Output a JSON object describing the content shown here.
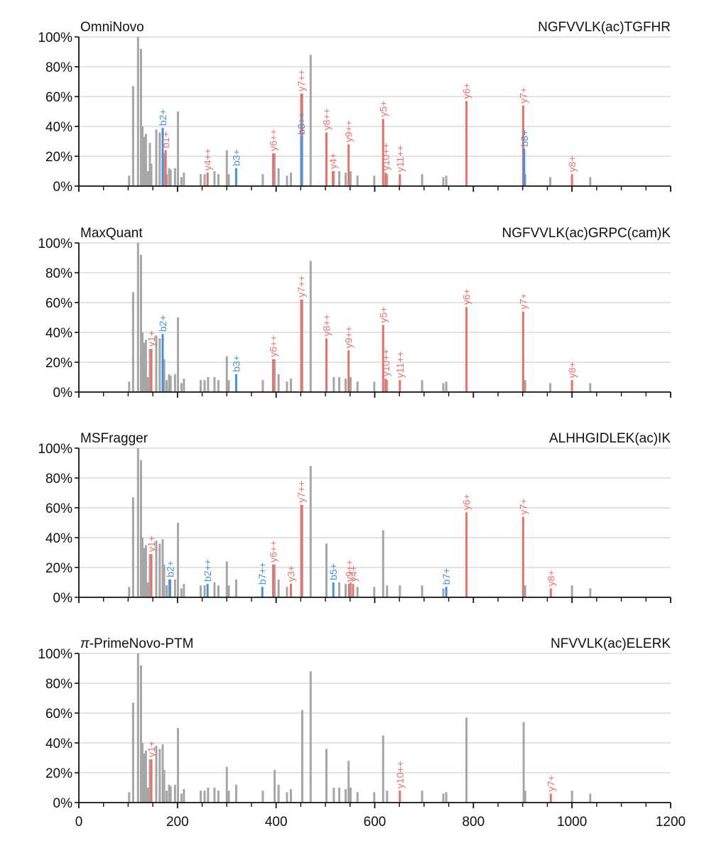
{
  "colors": {
    "unmatched": "#a6a6a6",
    "y_ion": "#e8726b",
    "b_ion": "#4a8fd8",
    "grid": "#d0d0d0",
    "axis": "#111111"
  },
  "chart_data": {
    "type": "bar",
    "x_axis": {
      "range": [
        0,
        1200
      ],
      "major_ticks": [
        0,
        200,
        400,
        600,
        800,
        1000,
        1200
      ],
      "minor_tick_step": 50,
      "tick_labels_shown_on_bottom_panel_only": true
    },
    "y_axis": {
      "range": [
        0,
        100
      ],
      "ticks": [
        0,
        20,
        40,
        60,
        80,
        100
      ],
      "tick_labels": [
        "0%",
        "20%",
        "40%",
        "60%",
        "80%",
        "100%"
      ]
    },
    "grid": "horizontal",
    "background_peaks": [
      [
        102,
        7
      ],
      [
        110,
        67
      ],
      [
        120,
        100
      ],
      [
        126,
        92
      ],
      [
        129,
        40
      ],
      [
        133,
        33
      ],
      [
        136,
        35
      ],
      [
        140,
        10
      ],
      [
        144,
        29
      ],
      [
        147,
        15
      ],
      [
        157,
        38
      ],
      [
        164,
        36
      ],
      [
        170,
        39
      ],
      [
        173,
        22
      ],
      [
        178,
        8
      ],
      [
        183,
        12
      ],
      [
        186,
        11
      ],
      [
        195,
        12
      ],
      [
        201,
        50
      ],
      [
        208,
        6
      ],
      [
        213,
        9
      ],
      [
        247,
        8
      ],
      [
        255,
        8
      ],
      [
        262,
        10
      ],
      [
        275,
        10
      ],
      [
        283,
        8
      ],
      [
        300,
        24
      ],
      [
        304,
        8
      ],
      [
        319,
        12
      ],
      [
        373,
        8
      ],
      [
        397,
        22
      ],
      [
        405,
        12
      ],
      [
        422,
        7
      ],
      [
        430,
        9
      ],
      [
        453,
        62
      ],
      [
        470,
        88
      ],
      [
        502,
        36
      ],
      [
        517,
        10
      ],
      [
        528,
        10
      ],
      [
        541,
        9
      ],
      [
        547,
        28
      ],
      [
        551,
        10
      ],
      [
        565,
        7
      ],
      [
        599,
        7
      ],
      [
        617,
        45
      ],
      [
        625,
        8
      ],
      [
        651,
        8
      ],
      [
        696,
        8
      ],
      [
        739,
        6
      ],
      [
        745,
        7
      ],
      [
        786,
        57
      ],
      [
        902,
        54
      ],
      [
        905,
        8
      ],
      [
        956,
        6
      ],
      [
        1000,
        8
      ],
      [
        1037,
        6
      ]
    ],
    "panels": [
      {
        "method_prefix": "",
        "method": "OmniNovo",
        "peptide": "NGFVVLK(ac)TGFHR",
        "annotated_peaks": [
          {
            "x": 170,
            "y": 39,
            "ion": "b2+",
            "type": "b"
          },
          {
            "x": 176,
            "y": 24,
            "ion": "b1+",
            "type": "y"
          },
          {
            "x": 261,
            "y": 9,
            "ion": "y4++",
            "type": "y"
          },
          {
            "x": 319,
            "y": 12,
            "ion": "b3+",
            "type": "b"
          },
          {
            "x": 394,
            "y": 22,
            "ion": "y6++",
            "type": "y"
          },
          {
            "x": 451,
            "y": 62,
            "ion": "y7++",
            "type": "y"
          },
          {
            "x": 451,
            "y": 33,
            "ion": "b8++",
            "type": "b"
          },
          {
            "x": 502,
            "y": 36,
            "ion": "y8++",
            "type": "y"
          },
          {
            "x": 515,
            "y": 10,
            "ion": "y4+",
            "type": "y"
          },
          {
            "x": 547,
            "y": 28,
            "ion": "y9++",
            "type": "y"
          },
          {
            "x": 617,
            "y": 45,
            "ion": "y5+",
            "type": "y"
          },
          {
            "x": 622,
            "y": 9,
            "ion": "y10++",
            "type": "y"
          },
          {
            "x": 651,
            "y": 8,
            "ion": "y11++",
            "type": "y"
          },
          {
            "x": 786,
            "y": 57,
            "ion": "y6+",
            "type": "y"
          },
          {
            "x": 901,
            "y": 54,
            "ion": "y7+",
            "type": "y"
          },
          {
            "x": 903,
            "y": 25,
            "ion": "b8+",
            "type": "b"
          },
          {
            "x": 1000,
            "y": 8,
            "ion": "y8+",
            "type": "y"
          }
        ]
      },
      {
        "method_prefix": "",
        "method": "MaxQuant",
        "peptide": "NGFVVLK(ac)GRPC(cam)K",
        "annotated_peaks": [
          {
            "x": 147,
            "y": 29,
            "ion": "y1+",
            "type": "y"
          },
          {
            "x": 170,
            "y": 39,
            "ion": "b2+",
            "type": "b"
          },
          {
            "x": 319,
            "y": 12,
            "ion": "b3+",
            "type": "b"
          },
          {
            "x": 394,
            "y": 22,
            "ion": "y6++",
            "type": "y"
          },
          {
            "x": 451,
            "y": 62,
            "ion": "y7++",
            "type": "y"
          },
          {
            "x": 502,
            "y": 36,
            "ion": "y8++",
            "type": "y"
          },
          {
            "x": 547,
            "y": 28,
            "ion": "y9++",
            "type": "y"
          },
          {
            "x": 617,
            "y": 45,
            "ion": "y5+",
            "type": "y"
          },
          {
            "x": 622,
            "y": 9,
            "ion": "y10++",
            "type": "y"
          },
          {
            "x": 651,
            "y": 8,
            "ion": "y11++",
            "type": "y"
          },
          {
            "x": 786,
            "y": 57,
            "ion": "y6+",
            "type": "y"
          },
          {
            "x": 901,
            "y": 54,
            "ion": "y7+",
            "type": "y"
          },
          {
            "x": 1000,
            "y": 8,
            "ion": "y8+",
            "type": "y"
          }
        ]
      },
      {
        "method_prefix": "",
        "method": "MSFragger",
        "peptide": "ALHHGIDLEK(ac)IK",
        "annotated_peaks": [
          {
            "x": 147,
            "y": 29,
            "ion": "y1+",
            "type": "y"
          },
          {
            "x": 185,
            "y": 12,
            "ion": "b2+",
            "type": "b"
          },
          {
            "x": 261,
            "y": 9,
            "ion": "b2++",
            "type": "b"
          },
          {
            "x": 372,
            "y": 7,
            "ion": "b7++",
            "type": "b"
          },
          {
            "x": 394,
            "y": 22,
            "ion": "y6++",
            "type": "y"
          },
          {
            "x": 430,
            "y": 9,
            "ion": "y3+",
            "type": "y"
          },
          {
            "x": 451,
            "y": 62,
            "ion": "y7++",
            "type": "y"
          },
          {
            "x": 516,
            "y": 10,
            "ion": "b5+",
            "type": "b"
          },
          {
            "x": 548,
            "y": 9,
            "ion": "y9++",
            "type": "y"
          },
          {
            "x": 556,
            "y": 9,
            "ion": "y4+",
            "type": "y"
          },
          {
            "x": 745,
            "y": 7,
            "ion": "b7+",
            "type": "b"
          },
          {
            "x": 786,
            "y": 57,
            "ion": "y6+",
            "type": "y"
          },
          {
            "x": 901,
            "y": 54,
            "ion": "y7+",
            "type": "y"
          },
          {
            "x": 957,
            "y": 6,
            "ion": "y8+",
            "type": "y"
          }
        ]
      },
      {
        "method_prefix": "π",
        "method": "-PrimeNovo-PTM",
        "peptide": "NFVVLK(ac)ELERK",
        "annotated_peaks": [
          {
            "x": 147,
            "y": 29,
            "ion": "y1+",
            "type": "y"
          },
          {
            "x": 651,
            "y": 8,
            "ion": "y10++",
            "type": "y"
          },
          {
            "x": 957,
            "y": 6,
            "ion": "y7+",
            "type": "y"
          }
        ]
      }
    ]
  }
}
